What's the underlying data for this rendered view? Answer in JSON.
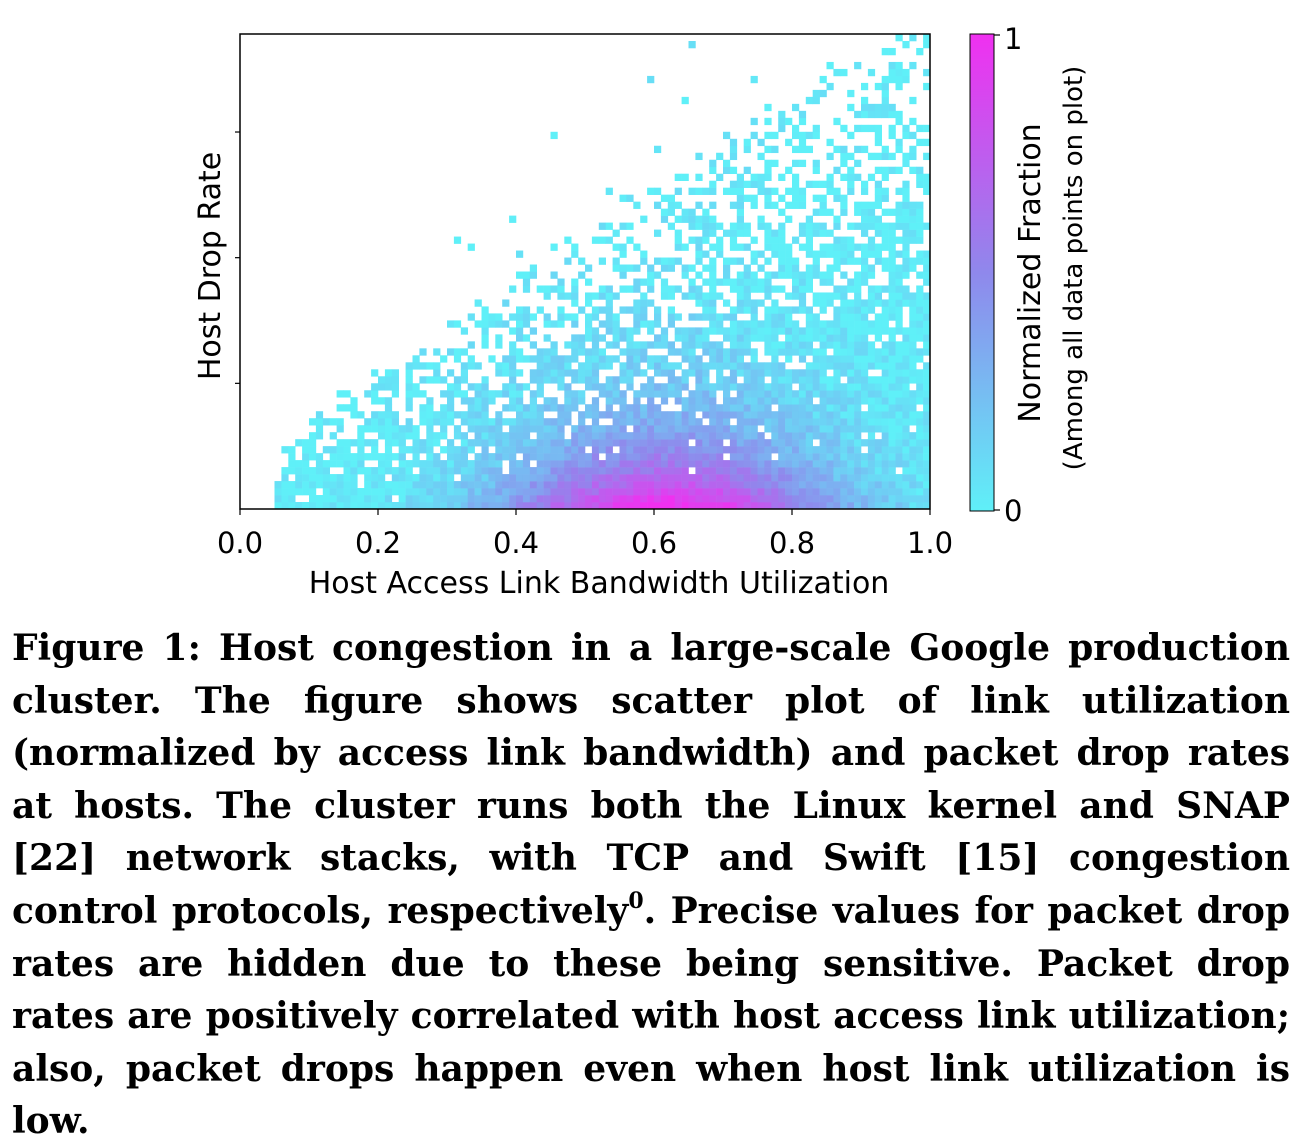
{
  "chart_data": {
    "type": "heatmap",
    "title": "",
    "xlabel": "Host Access Link Bandwidth Utilization",
    "ylabel": "Host Drop Rate",
    "xlim": [
      0.0,
      1.0
    ],
    "x_ticks": [
      "0.0",
      "0.2",
      "0.4",
      "0.6",
      "0.8",
      "1.0"
    ],
    "y_tick_labels_shown": false,
    "y_tick_count": 3,
    "colorbar": {
      "label": "Normalized Fraction",
      "sublabel": "(Among all data points on plot)",
      "min_label": "0",
      "max_label": "1",
      "color_low": "#5ff0f8",
      "color_high": "#f030f0"
    },
    "density_peak_x": 0.62,
    "density_support_x": [
      0.05,
      1.0
    ],
    "grid": false,
    "legend": "none"
  },
  "caption": {
    "lead": "Figure 1: Host congestion in a large-scale Google production cluster. The figure shows scatter plot of link utilization (normalized by access link bandwidth) and packet drop rates at hosts. The cluster runs both the Linux kernel and SNAP [22] network stacks, with TCP and Swift [15] congestion control protocols, respectively",
    "footnote_mark": "0",
    "tail": ". Precise values for packet drop rates are hidden due to these being sensitive. Packet drop rates are positively correlated with host access link utilization; also, packet drops happen even when host link utilization is low."
  }
}
